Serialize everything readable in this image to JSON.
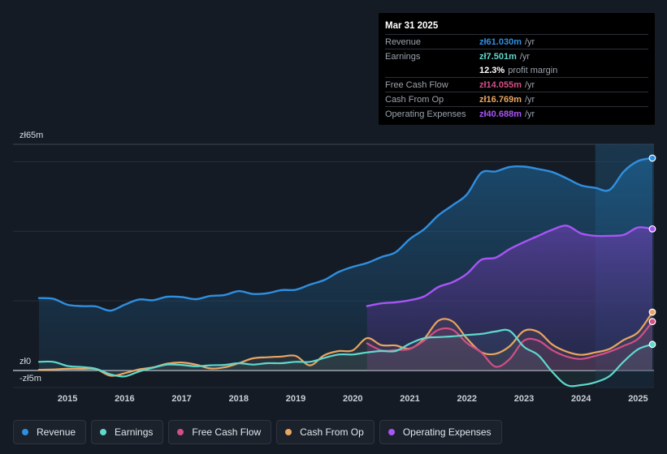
{
  "tooltip": {
    "date": "Mar 31 2025",
    "rows": [
      {
        "label": "Revenue",
        "value": "zł61.030m",
        "unit": "/yr",
        "color": "#2f8fe0"
      },
      {
        "label": "Earnings",
        "value": "zł7.501m",
        "unit": "/yr",
        "color": "#5fd9cd"
      },
      {
        "label": "",
        "value": "12.3%",
        "unit": "profit margin",
        "color": "#ffffff"
      },
      {
        "label": "Free Cash Flow",
        "value": "zł14.055m",
        "unit": "/yr",
        "color": "#d14f86"
      },
      {
        "label": "Cash From Op",
        "value": "zł16.769m",
        "unit": "/yr",
        "color": "#e9a561"
      },
      {
        "label": "Operating Expenses",
        "value": "zł40.688m",
        "unit": "/yr",
        "color": "#a855f7"
      }
    ]
  },
  "legend": [
    {
      "label": "Revenue",
      "color": "#2f8fe0"
    },
    {
      "label": "Earnings",
      "color": "#5fd9cd"
    },
    {
      "label": "Free Cash Flow",
      "color": "#d14f86"
    },
    {
      "label": "Cash From Op",
      "color": "#e9a561"
    },
    {
      "label": "Operating Expenses",
      "color": "#a855f7"
    }
  ],
  "chart_data": {
    "type": "area",
    "title": "",
    "y_top_label": "zł65m",
    "y_zero_label": "zł0",
    "y_bottom_label": "-zł5m",
    "ylim": [
      -5,
      65
    ],
    "xlim": [
      2014.5,
      2025.25
    ],
    "x_ticks": [
      "2015",
      "2016",
      "2017",
      "2018",
      "2019",
      "2020",
      "2021",
      "2022",
      "2023",
      "2024",
      "2025"
    ],
    "series": [
      {
        "name": "Revenue",
        "color": "#2f8fe0",
        "points": [
          [
            2014.5,
            20.8
          ],
          [
            2014.75,
            20.6
          ],
          [
            2015.0,
            18.9
          ],
          [
            2015.25,
            18.5
          ],
          [
            2015.5,
            18.4
          ],
          [
            2015.75,
            17.2
          ],
          [
            2016.0,
            18.9
          ],
          [
            2016.25,
            20.4
          ],
          [
            2016.5,
            20.2
          ],
          [
            2016.75,
            21.2
          ],
          [
            2017.0,
            21.1
          ],
          [
            2017.25,
            20.5
          ],
          [
            2017.5,
            21.4
          ],
          [
            2017.75,
            21.7
          ],
          [
            2018.0,
            22.8
          ],
          [
            2018.25,
            22.0
          ],
          [
            2018.5,
            22.2
          ],
          [
            2018.75,
            23.1
          ],
          [
            2019.0,
            23.2
          ],
          [
            2019.25,
            24.7
          ],
          [
            2019.5,
            26.0
          ],
          [
            2019.75,
            28.3
          ],
          [
            2020.0,
            29.8
          ],
          [
            2020.25,
            30.9
          ],
          [
            2020.5,
            32.6
          ],
          [
            2020.75,
            34.0
          ],
          [
            2021.0,
            37.8
          ],
          [
            2021.25,
            40.6
          ],
          [
            2021.5,
            44.6
          ],
          [
            2021.75,
            47.5
          ],
          [
            2022.0,
            50.6
          ],
          [
            2022.25,
            56.8
          ],
          [
            2022.5,
            57.2
          ],
          [
            2022.75,
            58.5
          ],
          [
            2023.0,
            58.6
          ],
          [
            2023.25,
            57.9
          ],
          [
            2023.5,
            57.0
          ],
          [
            2023.75,
            55.2
          ],
          [
            2024.0,
            53.2
          ],
          [
            2024.25,
            52.5
          ],
          [
            2024.5,
            51.9
          ],
          [
            2024.75,
            57.2
          ],
          [
            2025.0,
            60.2
          ],
          [
            2025.25,
            61.03
          ]
        ]
      },
      {
        "name": "Operating Expenses",
        "color": "#a855f7",
        "points": [
          [
            2020.25,
            18.5
          ],
          [
            2020.5,
            19.3
          ],
          [
            2020.75,
            19.6
          ],
          [
            2021.0,
            20.2
          ],
          [
            2021.25,
            21.3
          ],
          [
            2021.5,
            24.0
          ],
          [
            2021.75,
            25.4
          ],
          [
            2022.0,
            27.8
          ],
          [
            2022.25,
            31.8
          ],
          [
            2022.5,
            32.4
          ],
          [
            2022.75,
            34.9
          ],
          [
            2023.0,
            36.9
          ],
          [
            2023.25,
            38.7
          ],
          [
            2023.5,
            40.5
          ],
          [
            2023.75,
            41.6
          ],
          [
            2024.0,
            39.4
          ],
          [
            2024.25,
            38.7
          ],
          [
            2024.5,
            38.7
          ],
          [
            2024.75,
            39.0
          ],
          [
            2025.0,
            41.1
          ],
          [
            2025.25,
            40.69
          ]
        ]
      },
      {
        "name": "Cash From Op",
        "color": "#e9a561",
        "points": [
          [
            2014.5,
            0.2
          ],
          [
            2014.75,
            0.3
          ],
          [
            2015.0,
            0.5
          ],
          [
            2015.25,
            0.5
          ],
          [
            2015.5,
            0.4
          ],
          [
            2015.75,
            -1.5
          ],
          [
            2016.0,
            -0.8
          ],
          [
            2016.25,
            0.3
          ],
          [
            2016.5,
            0.9
          ],
          [
            2016.75,
            2.0
          ],
          [
            2017.0,
            2.3
          ],
          [
            2017.25,
            1.7
          ],
          [
            2017.5,
            0.6
          ],
          [
            2017.75,
            0.9
          ],
          [
            2018.0,
            2.1
          ],
          [
            2018.25,
            3.5
          ],
          [
            2018.5,
            3.8
          ],
          [
            2018.75,
            4.0
          ],
          [
            2019.0,
            4.2
          ],
          [
            2019.25,
            1.5
          ],
          [
            2019.5,
            4.4
          ],
          [
            2019.75,
            5.6
          ],
          [
            2020.0,
            5.8
          ],
          [
            2020.25,
            9.3
          ],
          [
            2020.5,
            7.3
          ],
          [
            2020.75,
            7.2
          ],
          [
            2021.0,
            6.3
          ],
          [
            2021.25,
            9.1
          ],
          [
            2021.5,
            14.3
          ],
          [
            2021.75,
            14.1
          ],
          [
            2022.0,
            9.2
          ],
          [
            2022.25,
            5.3
          ],
          [
            2022.5,
            4.8
          ],
          [
            2022.75,
            7.0
          ],
          [
            2023.0,
            11.4
          ],
          [
            2023.25,
            11.1
          ],
          [
            2023.5,
            7.4
          ],
          [
            2023.75,
            5.4
          ],
          [
            2024.0,
            4.5
          ],
          [
            2024.25,
            5.2
          ],
          [
            2024.5,
            6.2
          ],
          [
            2024.75,
            8.8
          ],
          [
            2025.0,
            11.0
          ],
          [
            2025.25,
            16.77
          ]
        ]
      },
      {
        "name": "Free Cash Flow",
        "color": "#d14f86",
        "points": [
          [
            2020.25,
            7.8
          ],
          [
            2020.5,
            5.8
          ],
          [
            2020.75,
            5.9
          ],
          [
            2021.0,
            6.2
          ],
          [
            2021.25,
            8.6
          ],
          [
            2021.5,
            11.7
          ],
          [
            2021.75,
            11.7
          ],
          [
            2022.0,
            7.9
          ],
          [
            2022.25,
            5.2
          ],
          [
            2022.5,
            1.1
          ],
          [
            2022.75,
            3.3
          ],
          [
            2023.0,
            8.6
          ],
          [
            2023.25,
            8.6
          ],
          [
            2023.5,
            5.8
          ],
          [
            2023.75,
            4.0
          ],
          [
            2024.0,
            3.3
          ],
          [
            2024.25,
            4.2
          ],
          [
            2024.5,
            5.4
          ],
          [
            2024.75,
            7.1
          ],
          [
            2025.0,
            9.1
          ],
          [
            2025.25,
            14.06
          ]
        ]
      },
      {
        "name": "Earnings",
        "color": "#5fd9cd",
        "points": [
          [
            2014.5,
            2.5
          ],
          [
            2014.75,
            2.5
          ],
          [
            2015.0,
            1.3
          ],
          [
            2015.25,
            1.0
          ],
          [
            2015.5,
            0.5
          ],
          [
            2015.75,
            -1.1
          ],
          [
            2016.0,
            -1.7
          ],
          [
            2016.25,
            -0.3
          ],
          [
            2016.5,
            0.8
          ],
          [
            2016.75,
            1.7
          ],
          [
            2017.0,
            1.6
          ],
          [
            2017.25,
            1.2
          ],
          [
            2017.5,
            1.5
          ],
          [
            2017.75,
            1.6
          ],
          [
            2018.0,
            2.1
          ],
          [
            2018.25,
            1.7
          ],
          [
            2018.5,
            2.1
          ],
          [
            2018.75,
            2.1
          ],
          [
            2019.0,
            2.5
          ],
          [
            2019.25,
            2.5
          ],
          [
            2019.5,
            3.6
          ],
          [
            2019.75,
            4.6
          ],
          [
            2020.0,
            4.6
          ],
          [
            2020.25,
            5.2
          ],
          [
            2020.5,
            5.6
          ],
          [
            2020.75,
            5.6
          ],
          [
            2021.0,
            7.7
          ],
          [
            2021.25,
            9.3
          ],
          [
            2021.5,
            9.6
          ],
          [
            2021.75,
            9.8
          ],
          [
            2022.0,
            10.2
          ],
          [
            2022.25,
            10.5
          ],
          [
            2022.5,
            11.2
          ],
          [
            2022.75,
            11.4
          ],
          [
            2023.0,
            6.8
          ],
          [
            2023.25,
            4.4
          ],
          [
            2023.5,
            -0.5
          ],
          [
            2023.75,
            -4.2
          ],
          [
            2024.0,
            -4.2
          ],
          [
            2024.25,
            -3.4
          ],
          [
            2024.5,
            -1.6
          ],
          [
            2024.75,
            2.6
          ],
          [
            2025.0,
            6.1
          ],
          [
            2025.25,
            7.5
          ]
        ]
      }
    ]
  }
}
